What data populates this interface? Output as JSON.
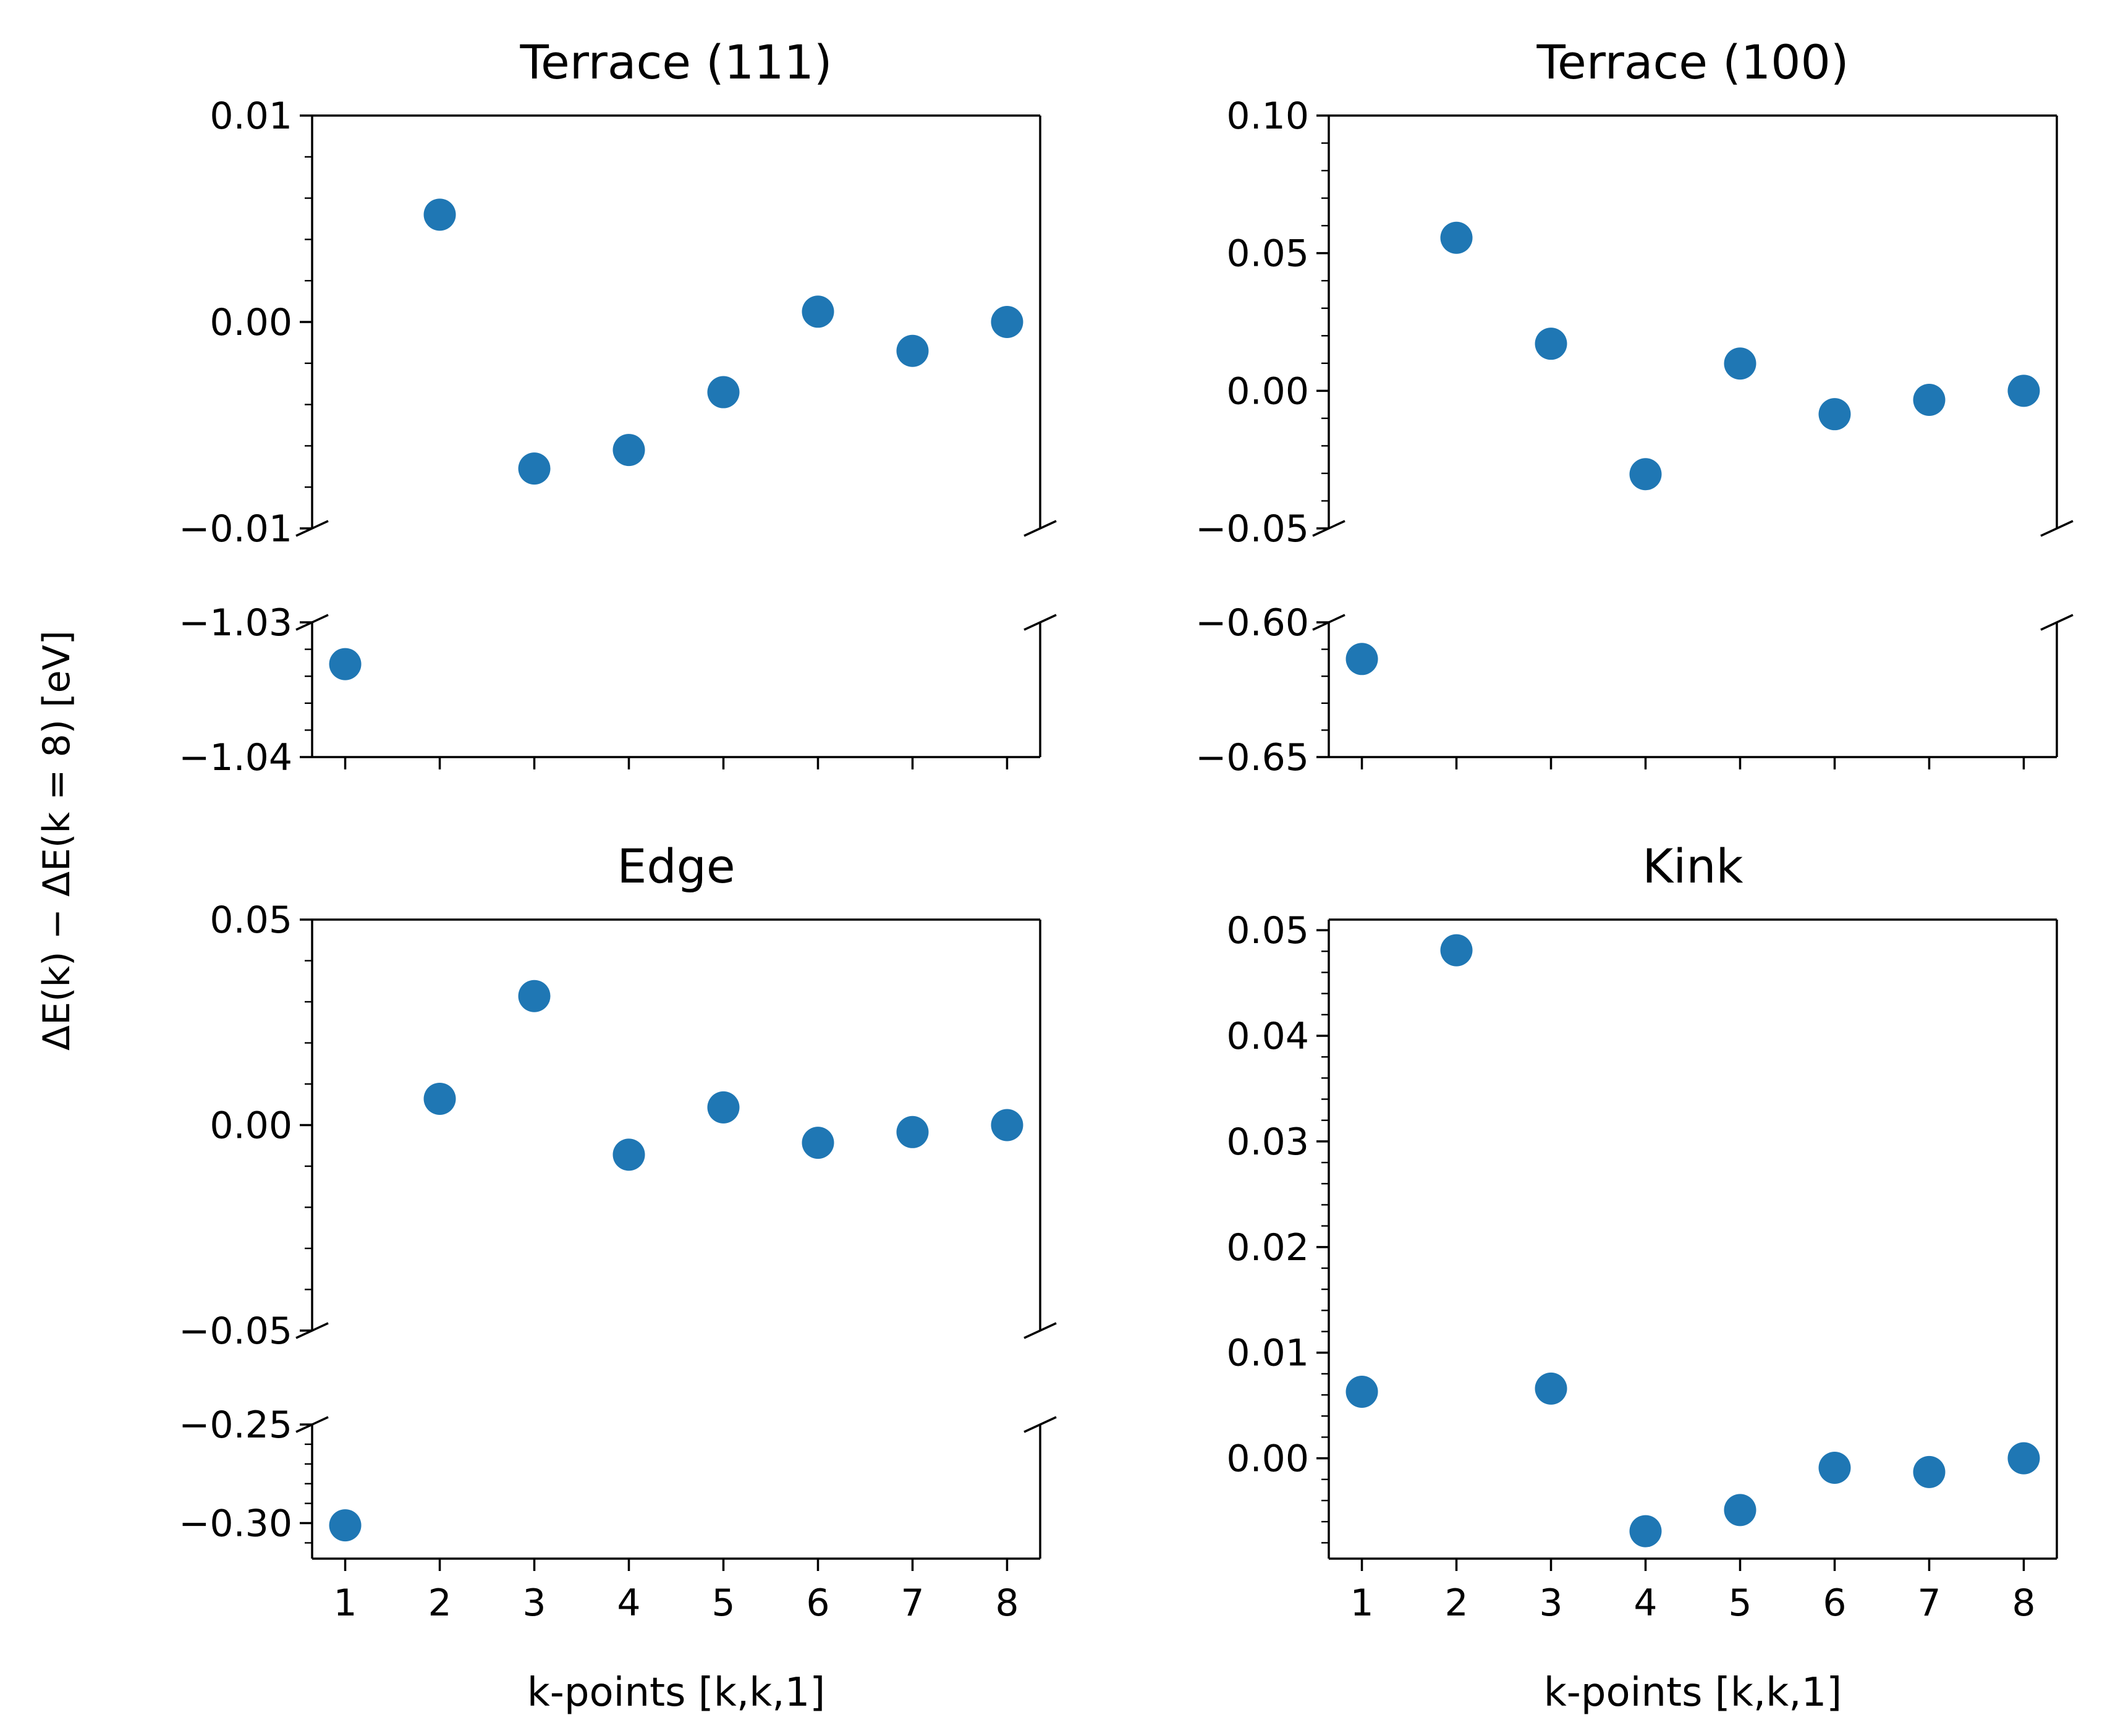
{
  "figure": {
    "ylabel": "ΔE(k) − ΔE(k = 8) [eV]"
  },
  "chart_data": [
    {
      "type": "scatter",
      "title": "Terrace (111)",
      "xlabel": "",
      "color": "#1f77b4",
      "x": [
        1,
        2,
        3,
        4,
        5,
        6,
        7,
        8
      ],
      "y": [
        -1.0331,
        0.0052,
        -0.0071,
        -0.0062,
        -0.0034,
        0.0005,
        -0.0014,
        0.0
      ],
      "x_ticks": [
        1,
        2,
        3,
        4,
        5,
        6,
        7,
        8
      ],
      "x_tick_labels_visible": false,
      "broken_axis": true,
      "upper": {
        "ylim": [
          -0.01,
          0.01
        ],
        "ticks": [
          -0.01,
          0.0,
          0.01
        ],
        "tick_labels": [
          "−0.01",
          "0.00",
          "0.01"
        ],
        "minor_step": 0.002
      },
      "lower": {
        "ylim": [
          -1.04,
          -1.03
        ],
        "ticks": [
          -1.04,
          -1.03
        ],
        "tick_labels": [
          "−1.04",
          "−1.03"
        ],
        "minor_step": 0.002
      }
    },
    {
      "type": "scatter",
      "title": "Terrace (100)",
      "xlabel": "",
      "color": "#1f77b4",
      "x": [
        1,
        2,
        3,
        4,
        5,
        6,
        7,
        8
      ],
      "y": [
        -0.6136,
        0.0556,
        0.0171,
        -0.0303,
        0.0099,
        -0.0085,
        -0.0033,
        0.0
      ],
      "x_ticks": [
        1,
        2,
        3,
        4,
        5,
        6,
        7,
        8
      ],
      "x_tick_labels_visible": false,
      "broken_axis": true,
      "upper": {
        "ylim": [
          -0.05,
          0.1
        ],
        "ticks": [
          -0.05,
          0.0,
          0.05,
          0.1
        ],
        "tick_labels": [
          "−0.05",
          "0.00",
          "0.05",
          "0.10"
        ],
        "minor_step": 0.01
      },
      "lower": {
        "ylim": [
          -0.65,
          -0.6
        ],
        "ticks": [
          -0.65,
          -0.6
        ],
        "tick_labels": [
          "−0.65",
          "−0.60"
        ],
        "minor_step": 0.01
      }
    },
    {
      "type": "scatter",
      "title": "Edge",
      "xlabel": "k-points [k,k,1]",
      "color": "#1f77b4",
      "x": [
        1,
        2,
        3,
        4,
        5,
        6,
        7,
        8
      ],
      "y": [
        -0.3011,
        0.0064,
        0.0314,
        -0.0072,
        0.0043,
        -0.0043,
        -0.0017,
        0.0
      ],
      "x_ticks": [
        1,
        2,
        3,
        4,
        5,
        6,
        7,
        8
      ],
      "x_tick_labels": [
        "1",
        "2",
        "3",
        "4",
        "5",
        "6",
        "7",
        "8"
      ],
      "x_tick_labels_visible": true,
      "broken_axis": true,
      "upper": {
        "ylim": [
          -0.05,
          0.05
        ],
        "ticks": [
          -0.05,
          0.0,
          0.05
        ],
        "tick_labels": [
          "−0.05",
          "0.00",
          "0.05"
        ],
        "minor_step": 0.01
      },
      "lower": {
        "ylim": [
          -0.318,
          -0.25
        ],
        "ticks": [
          -0.3,
          -0.25
        ],
        "tick_labels": [
          "−0.30",
          "−0.25"
        ],
        "minor_step": 0.01
      }
    },
    {
      "type": "scatter",
      "title": "Kink",
      "xlabel": "k-points [k,k,1]",
      "color": "#1f77b4",
      "x": [
        1,
        2,
        3,
        4,
        5,
        6,
        7,
        8
      ],
      "y": [
        0.0063,
        0.0481,
        0.0066,
        -0.0069,
        -0.0049,
        -0.0009,
        -0.0013,
        0.0
      ],
      "x_ticks": [
        1,
        2,
        3,
        4,
        5,
        6,
        7,
        8
      ],
      "x_tick_labels": [
        "1",
        "2",
        "3",
        "4",
        "5",
        "6",
        "7",
        "8"
      ],
      "x_tick_labels_visible": true,
      "broken_axis": false,
      "ylim": [
        -0.0095,
        0.051
      ],
      "ticks": [
        0.0,
        0.01,
        0.02,
        0.03,
        0.04,
        0.05
      ],
      "tick_labels": [
        "0.00",
        "0.01",
        "0.02",
        "0.03",
        "0.04",
        "0.05"
      ],
      "minor_step": 0.002
    }
  ]
}
